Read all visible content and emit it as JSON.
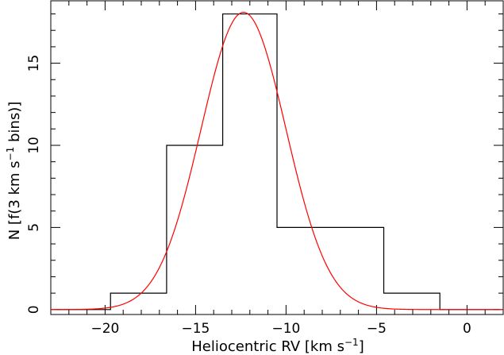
{
  "chart_data": {
    "type": "bar",
    "title": "",
    "xlabel": "Heliocentric RV [km s",
    "xlabel_sup": "−1",
    "xlabel_end": "]",
    "ylabel": "N [f(3 km s",
    "ylabel_sup": "−1",
    "ylabel_end": " bins)]",
    "xlim": [
      -23,
      2
    ],
    "ylim": [
      -0.3,
      18.8
    ],
    "x_ticks": [
      -20,
      -15,
      -10,
      -5,
      0
    ],
    "x_tick_labels": [
      "−20",
      "−15",
      "−10",
      "−5",
      "0"
    ],
    "y_ticks": [
      0,
      5,
      10,
      15
    ],
    "y_tick_labels": [
      "0",
      "5",
      "10",
      "15"
    ],
    "grid": false,
    "histogram": {
      "bin_edges": [
        -22.7,
        -19.7,
        -16.6,
        -13.5,
        -10.5,
        -7.6,
        -4.6,
        -1.5,
        1.8
      ],
      "counts": [
        0,
        1,
        10,
        18,
        5,
        5,
        1,
        0
      ],
      "color": "#000000"
    },
    "fit_curve": {
      "type": "gaussian",
      "amplitude": 18.1,
      "mean": -12.35,
      "sigma": 2.35,
      "color": "#ff0000"
    }
  }
}
